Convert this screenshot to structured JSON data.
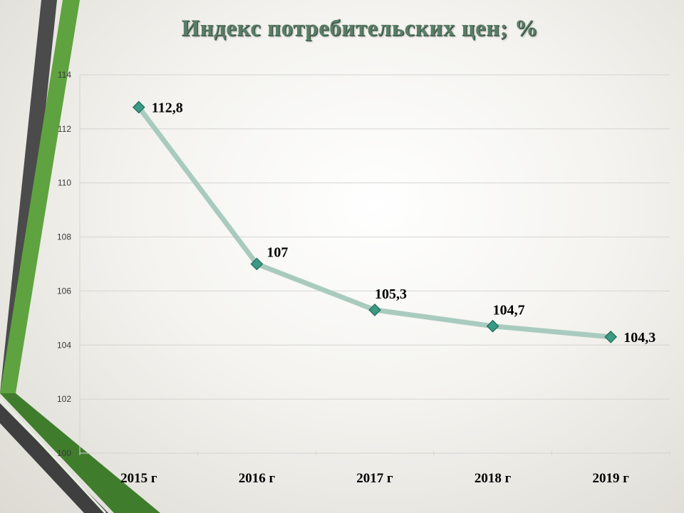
{
  "chart_data": {
    "type": "line",
    "title": "Индекс потребительских цен; %",
    "categories": [
      "2015 г",
      "2016 г",
      "2017 г",
      "2018 г",
      "2019 г"
    ],
    "series": [
      {
        "values": [
          112.8,
          107,
          105.3,
          104.7,
          104.3
        ],
        "labels": [
          "112,8",
          "107",
          "105,3",
          "104,7",
          "104,3"
        ]
      }
    ],
    "ylim": [
      100,
      114
    ],
    "yticks": [
      100,
      102,
      104,
      106,
      108,
      110,
      112,
      114
    ],
    "grid": true,
    "legend": "none",
    "colors": {
      "line": "#a9cbbf",
      "marker": "#3a9a83",
      "marker_edge": "#1f6b58",
      "title": "#5a7d66"
    }
  }
}
